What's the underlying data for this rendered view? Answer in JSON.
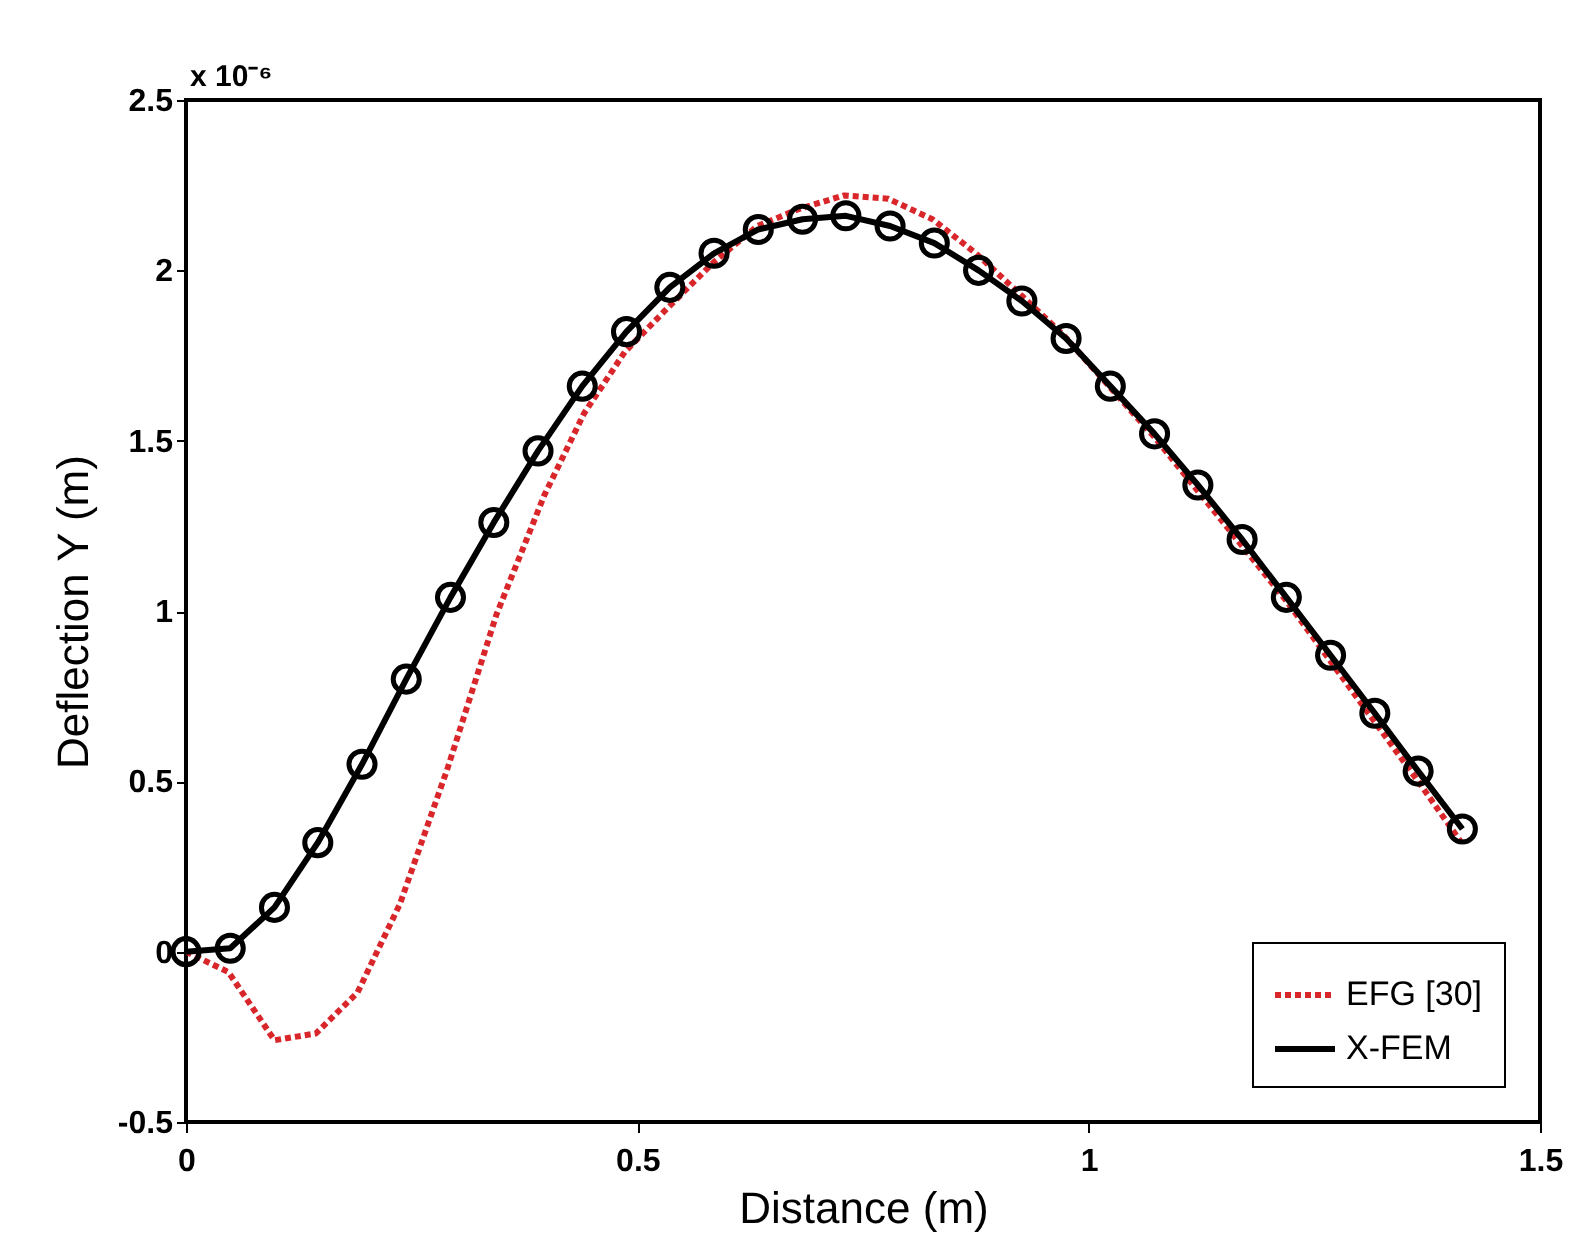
{
  "chart_data": {
    "type": "line",
    "xlabel": "Distance (m)",
    "ylabel": "Deflection Y (m)",
    "annotations": [
      "x 10⁻⁶"
    ],
    "xlim": [
      0,
      1.5
    ],
    "xticks": [
      0,
      0.5,
      1,
      1.5
    ],
    "ylim": [
      -0.5,
      2.5
    ],
    "yticks": [
      -0.5,
      0,
      0.5,
      1,
      1.5,
      2,
      2.5
    ],
    "grid": false,
    "legend": "bottom right",
    "series": [
      {
        "name": "EFG [30]",
        "color": "#d9262b",
        "line_style": "dotted",
        "marker": "none",
        "x": [
          0,
          0.047,
          0.098,
          0.144,
          0.19,
          0.237,
          0.29,
          0.344,
          0.397,
          0.441,
          0.486,
          0.53,
          0.583,
          0.633,
          0.679,
          0.729,
          0.778,
          0.827,
          0.875,
          0.924,
          0.972,
          1.073,
          1.219,
          1.365,
          1.413
        ],
        "values": [
          0,
          -0.06,
          -0.26,
          -0.24,
          -0.12,
          0.14,
          0.54,
          0.99,
          1.34,
          1.58,
          1.76,
          1.88,
          2.02,
          2.13,
          2.18,
          2.22,
          2.21,
          2.15,
          2.05,
          1.93,
          1.81,
          1.51,
          1.03,
          0.5,
          0.32
        ]
      },
      {
        "name": "X-FEM",
        "color": "#000000",
        "line_style": "solid",
        "marker": "circle",
        "x": [
          0,
          0.049,
          0.098,
          0.146,
          0.195,
          0.244,
          0.293,
          0.341,
          0.39,
          0.439,
          0.488,
          0.536,
          0.585,
          0.634,
          0.683,
          0.731,
          0.78,
          0.829,
          0.878,
          0.926,
          0.975,
          1.024,
          1.073,
          1.121,
          1.17,
          1.219,
          1.268,
          1.317,
          1.365,
          1.414
        ],
        "values": [
          0,
          0.01,
          0.13,
          0.32,
          0.55,
          0.8,
          1.04,
          1.26,
          1.47,
          1.66,
          1.82,
          1.95,
          2.05,
          2.12,
          2.15,
          2.16,
          2.13,
          2.08,
          2,
          1.91,
          1.8,
          1.66,
          1.52,
          1.37,
          1.21,
          1.04,
          0.87,
          0.7,
          0.53,
          0.36
        ]
      }
    ]
  }
}
